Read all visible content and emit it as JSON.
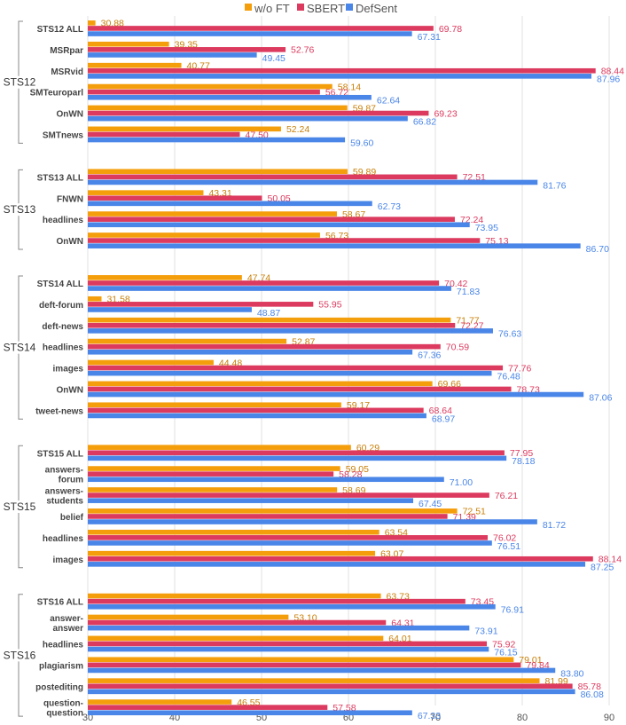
{
  "chart_data": {
    "type": "bar",
    "orientation": "horizontal",
    "legend_position": "top",
    "grid": true,
    "xlim": [
      30,
      90
    ],
    "x_ticks": [
      30,
      40,
      50,
      60,
      70,
      80,
      90
    ],
    "series": [
      {
        "name": "w/o FT",
        "color": "#f59e0b"
      },
      {
        "name": "SBERT",
        "color": "#dc3a5e"
      },
      {
        "name": "DefSent",
        "color": "#4a86e8"
      }
    ],
    "label_colors": [
      "#c87f07",
      "#dc3a5e",
      "#4a86e8"
    ],
    "groups": [
      {
        "name": "STS12",
        "rows": [
          {
            "label": "STS12 ALL",
            "values": [
              30.88,
              69.78,
              67.31
            ]
          },
          {
            "label": "MSRpar",
            "values": [
              39.35,
              52.76,
              49.45
            ]
          },
          {
            "label": "MSRvid",
            "values": [
              40.77,
              88.44,
              87.96
            ]
          },
          {
            "label": "SMTeuroparl",
            "values": [
              58.14,
              56.72,
              62.64
            ]
          },
          {
            "label": "OnWN",
            "values": [
              59.87,
              69.23,
              66.82
            ]
          },
          {
            "label": "SMTnews",
            "values": [
              52.24,
              47.5,
              59.6
            ]
          }
        ]
      },
      {
        "name": "STS13",
        "rows": [
          {
            "label": "STS13 ALL",
            "values": [
              59.89,
              72.51,
              81.76
            ]
          },
          {
            "label": "FNWN",
            "values": [
              43.31,
              50.05,
              62.73
            ]
          },
          {
            "label": "headlines",
            "values": [
              58.67,
              72.24,
              73.95
            ]
          },
          {
            "label": "OnWN",
            "values": [
              56.73,
              75.13,
              86.7
            ]
          }
        ]
      },
      {
        "name": "STS14",
        "rows": [
          {
            "label": "STS14 ALL",
            "values": [
              47.74,
              70.42,
              71.83
            ]
          },
          {
            "label": "deft-forum",
            "values": [
              31.58,
              55.95,
              48.87
            ]
          },
          {
            "label": "deft-news",
            "values": [
              71.77,
              72.27,
              76.63
            ]
          },
          {
            "label": "headlines",
            "values": [
              52.87,
              70.59,
              67.36
            ]
          },
          {
            "label": "images",
            "values": [
              44.48,
              77.76,
              76.48
            ]
          },
          {
            "label": "OnWN",
            "values": [
              69.66,
              78.73,
              87.06
            ]
          },
          {
            "label": "tweet-news",
            "values": [
              59.17,
              68.64,
              68.97
            ]
          }
        ]
      },
      {
        "name": "STS15",
        "rows": [
          {
            "label": "STS15 ALL",
            "values": [
              60.29,
              77.95,
              78.18
            ]
          },
          {
            "label": "answers-forum",
            "values": [
              59.05,
              58.28,
              71.0
            ]
          },
          {
            "label": "answers-students",
            "values": [
              58.69,
              76.21,
              67.45
            ]
          },
          {
            "label": "belief",
            "values": [
              72.51,
              71.39,
              81.72
            ]
          },
          {
            "label": "headlines",
            "values": [
              63.54,
              76.02,
              76.51
            ]
          },
          {
            "label": "images",
            "values": [
              63.07,
              88.14,
              87.25
            ]
          }
        ]
      },
      {
        "name": "STS16",
        "rows": [
          {
            "label": "STS16 ALL",
            "values": [
              63.73,
              73.45,
              76.91
            ]
          },
          {
            "label": "answer-answer",
            "values": [
              53.1,
              64.31,
              73.91
            ]
          },
          {
            "label": "headlines",
            "values": [
              64.01,
              75.92,
              76.15
            ]
          },
          {
            "label": "plagiarism",
            "values": [
              79.01,
              79.84,
              83.8
            ]
          },
          {
            "label": "postediting",
            "values": [
              81.99,
              85.78,
              86.08
            ]
          },
          {
            "label": "question-question",
            "values": [
              46.55,
              57.58,
              67.33
            ]
          }
        ]
      }
    ]
  }
}
